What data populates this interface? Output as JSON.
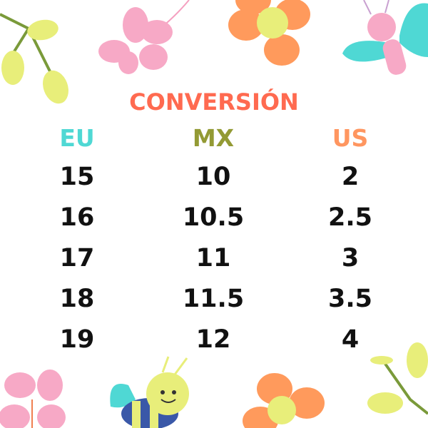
{
  "title": "CONVERSIÓN",
  "colors": {
    "title": "#ff6a50",
    "eu": "#4fd8d4",
    "mx": "#939a34",
    "us": "#ff9660",
    "values": "#111111"
  },
  "table": {
    "headers": [
      "EU",
      "MX",
      "US"
    ],
    "rows": [
      [
        "15",
        "10",
        "2"
      ],
      [
        "16",
        "10.5",
        "2.5"
      ],
      [
        "17",
        "11",
        "3"
      ],
      [
        "18",
        "11.5",
        "3.5"
      ],
      [
        "19",
        "12",
        "4"
      ]
    ]
  },
  "decorations": [
    "leaf-branch",
    "pink-flower",
    "orange-flower",
    "butterfly",
    "bee"
  ]
}
